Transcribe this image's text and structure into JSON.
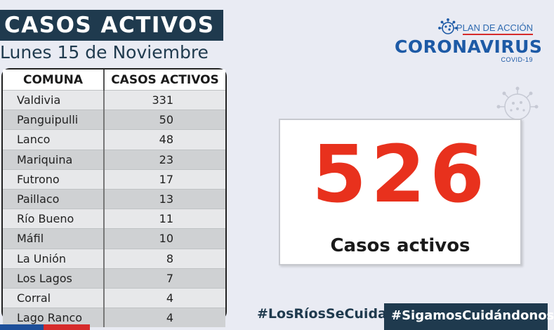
{
  "header": {
    "title": "CASOS ACTIVOS",
    "date": "Lunes 15 de Noviembre"
  },
  "logo": {
    "plan": "PLAN DE ACCIÓN",
    "name": "CORONAVIRUS",
    "sub": "COVID-19",
    "icon": "virus-icon"
  },
  "table": {
    "headers": [
      "COMUNA",
      "CASOS ACTIVOS"
    ],
    "rows": [
      {
        "comuna": "Valdivia",
        "casos": "331"
      },
      {
        "comuna": "Panguipulli",
        "casos": "50"
      },
      {
        "comuna": "Lanco",
        "casos": "48"
      },
      {
        "comuna": "Mariquina",
        "casos": "23"
      },
      {
        "comuna": "Futrono",
        "casos": "17"
      },
      {
        "comuna": "Paillaco",
        "casos": "13"
      },
      {
        "comuna": "Río Bueno",
        "casos": "11"
      },
      {
        "comuna": "Máfil",
        "casos": "10"
      },
      {
        "comuna": "La Unión",
        "casos": "8"
      },
      {
        "comuna": "Los Lagos",
        "casos": "7"
      },
      {
        "comuna": "Corral",
        "casos": "4"
      },
      {
        "comuna": "Lago Ranco",
        "casos": "4"
      }
    ]
  },
  "total": {
    "value": "526",
    "label": "Casos activos"
  },
  "footer": {
    "hashtag1": "#LosRíosSeCuida",
    "hashtag2": "#SigamosCuidándonos"
  },
  "colors": {
    "navy": "#1f3a4e",
    "accent_red": "#e8311d",
    "brand_blue": "#1d5aa6"
  }
}
